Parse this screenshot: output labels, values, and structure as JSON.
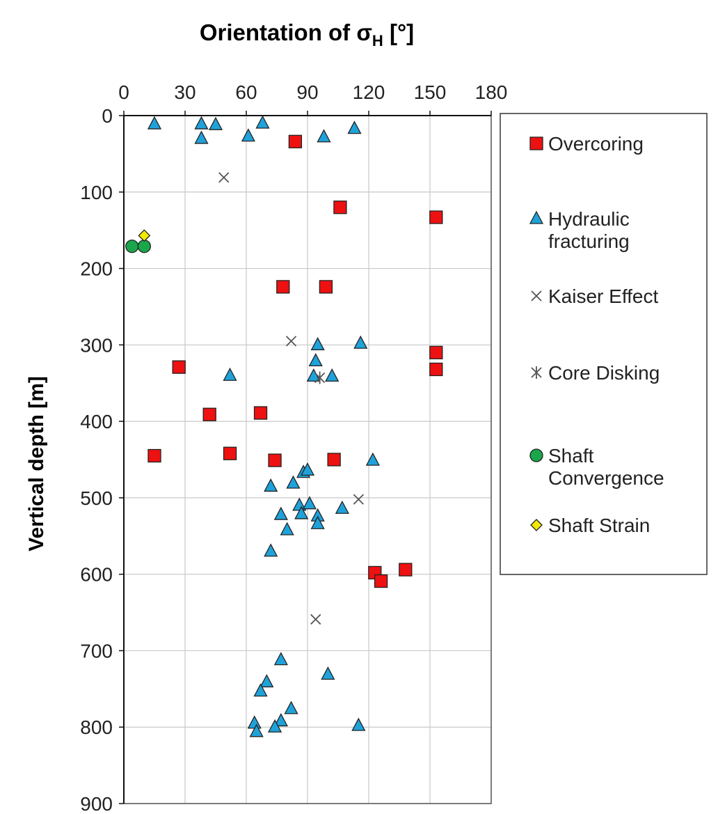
{
  "chart_data": {
    "type": "scatter",
    "title_parts": {
      "prefix": "Orientation of ",
      "symbol": "σ",
      "subscript": "H",
      "suffix": " [°]"
    },
    "xlabel": "",
    "ylabel": "Vertical depth [m]",
    "xlim": [
      0,
      180
    ],
    "ylim": [
      0,
      900
    ],
    "y_inverted": true,
    "x_axis_position": "top",
    "x_ticks": [
      "0",
      "30",
      "60",
      "90",
      "120",
      "150",
      "180"
    ],
    "y_ticks": [
      "0",
      "100",
      "200",
      "300",
      "400",
      "500",
      "600",
      "700",
      "800",
      "900"
    ],
    "grid": true,
    "legend_position": "right",
    "series": [
      {
        "name": "Overcoring",
        "marker": "square",
        "color": "#ee1111",
        "points": [
          [
            84,
            34
          ],
          [
            106,
            120
          ],
          [
            153,
            133
          ],
          [
            78,
            224
          ],
          [
            99,
            224
          ],
          [
            153,
            310
          ],
          [
            153,
            332
          ],
          [
            27,
            329
          ],
          [
            42,
            391
          ],
          [
            67,
            389
          ],
          [
            15,
            445
          ],
          [
            52,
            442
          ],
          [
            74,
            451
          ],
          [
            103,
            450
          ],
          [
            123,
            598
          ],
          [
            126,
            609
          ],
          [
            138,
            594
          ]
        ]
      },
      {
        "name": "Hydraulic fracturing",
        "marker": "triangle",
        "color": "#1fa2da",
        "points": [
          [
            15,
            11
          ],
          [
            38,
            11
          ],
          [
            45,
            12
          ],
          [
            68,
            10
          ],
          [
            113,
            17
          ],
          [
            38,
            30
          ],
          [
            61,
            27
          ],
          [
            98,
            28
          ],
          [
            95,
            300
          ],
          [
            116,
            298
          ],
          [
            94,
            321
          ],
          [
            52,
            340
          ],
          [
            93,
            341
          ],
          [
            102,
            341
          ],
          [
            122,
            451
          ],
          [
            88,
            467
          ],
          [
            90,
            464
          ],
          [
            72,
            485
          ],
          [
            83,
            481
          ],
          [
            86,
            510
          ],
          [
            91,
            508
          ],
          [
            107,
            514
          ],
          [
            77,
            522
          ],
          [
            87,
            521
          ],
          [
            95,
            524
          ],
          [
            95,
            534
          ],
          [
            80,
            542
          ],
          [
            72,
            570
          ],
          [
            77,
            712
          ],
          [
            100,
            731
          ],
          [
            70,
            741
          ],
          [
            67,
            753
          ],
          [
            82,
            776
          ],
          [
            77,
            792
          ],
          [
            64,
            795
          ],
          [
            74,
            800
          ],
          [
            115,
            798
          ],
          [
            65,
            806
          ]
        ]
      },
      {
        "name": "Kaiser Effect",
        "marker": "x",
        "color": "#555555",
        "points": [
          [
            49,
            81
          ],
          [
            82,
            295
          ],
          [
            115,
            502
          ],
          [
            94,
            659
          ]
        ]
      },
      {
        "name": "Core Disking",
        "marker": "asterisk",
        "color": "#555555",
        "points": [
          [
            96,
            343
          ]
        ]
      },
      {
        "name": "Shaft Convergence",
        "marker": "circle",
        "color": "#1aa64a",
        "points": [
          [
            4,
            171
          ],
          [
            10,
            171
          ]
        ]
      },
      {
        "name": "Shaft Strain",
        "marker": "diamond",
        "color": "#f2ea00",
        "points": [
          [
            10,
            157
          ]
        ]
      }
    ],
    "legend": [
      {
        "label_lines": [
          "Overcoring"
        ]
      },
      {
        "label_lines": [
          "Hydraulic",
          "fracturing"
        ]
      },
      {
        "label_lines": [
          "Kaiser Effect"
        ]
      },
      {
        "label_lines": [
          "Core Disking"
        ]
      },
      {
        "label_lines": [
          "Shaft",
          "Convergence"
        ]
      },
      {
        "label_lines": [
          "Shaft Strain"
        ]
      }
    ]
  }
}
